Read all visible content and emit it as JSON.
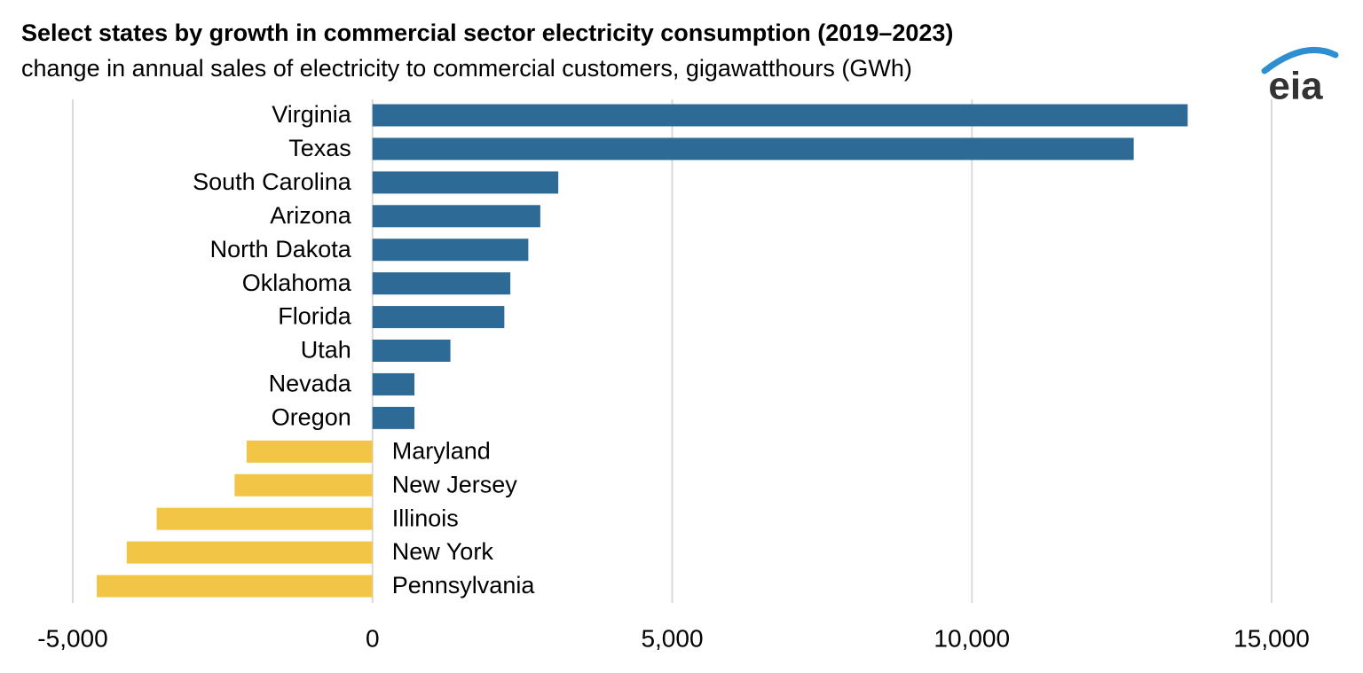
{
  "chart_data": {
    "type": "bar",
    "orientation": "horizontal",
    "title": "Select states by growth in commercial sector electricity consumption (2019–2023)",
    "subtitle": "change in annual sales of electricity to commercial customers, gigawatthours (GWh)",
    "logo": "eia",
    "categories": [
      "Virginia",
      "Texas",
      "South Carolina",
      "Arizona",
      "North Dakota",
      "Oklahoma",
      "Florida",
      "Utah",
      "Nevada",
      "Oregon",
      "Maryland",
      "New Jersey",
      "Illinois",
      "New York",
      "Pennsylvania"
    ],
    "values": [
      13600,
      12700,
      3100,
      2800,
      2600,
      2300,
      2200,
      1300,
      700,
      700,
      -2100,
      -2300,
      -3600,
      -4100,
      -4600
    ],
    "color": "#2e6a96",
    "negative_color": "#f2c547",
    "xlim": [
      -5000,
      15000
    ],
    "xticks": [
      {
        "value": -5000,
        "label": "-5,000"
      },
      0,
      {
        "value": 5000,
        "label": "5,000"
      },
      {
        "value": 10000,
        "label": "10,000"
      },
      {
        "value": 15000,
        "label": "15,000"
      }
    ],
    "grid": true
  }
}
